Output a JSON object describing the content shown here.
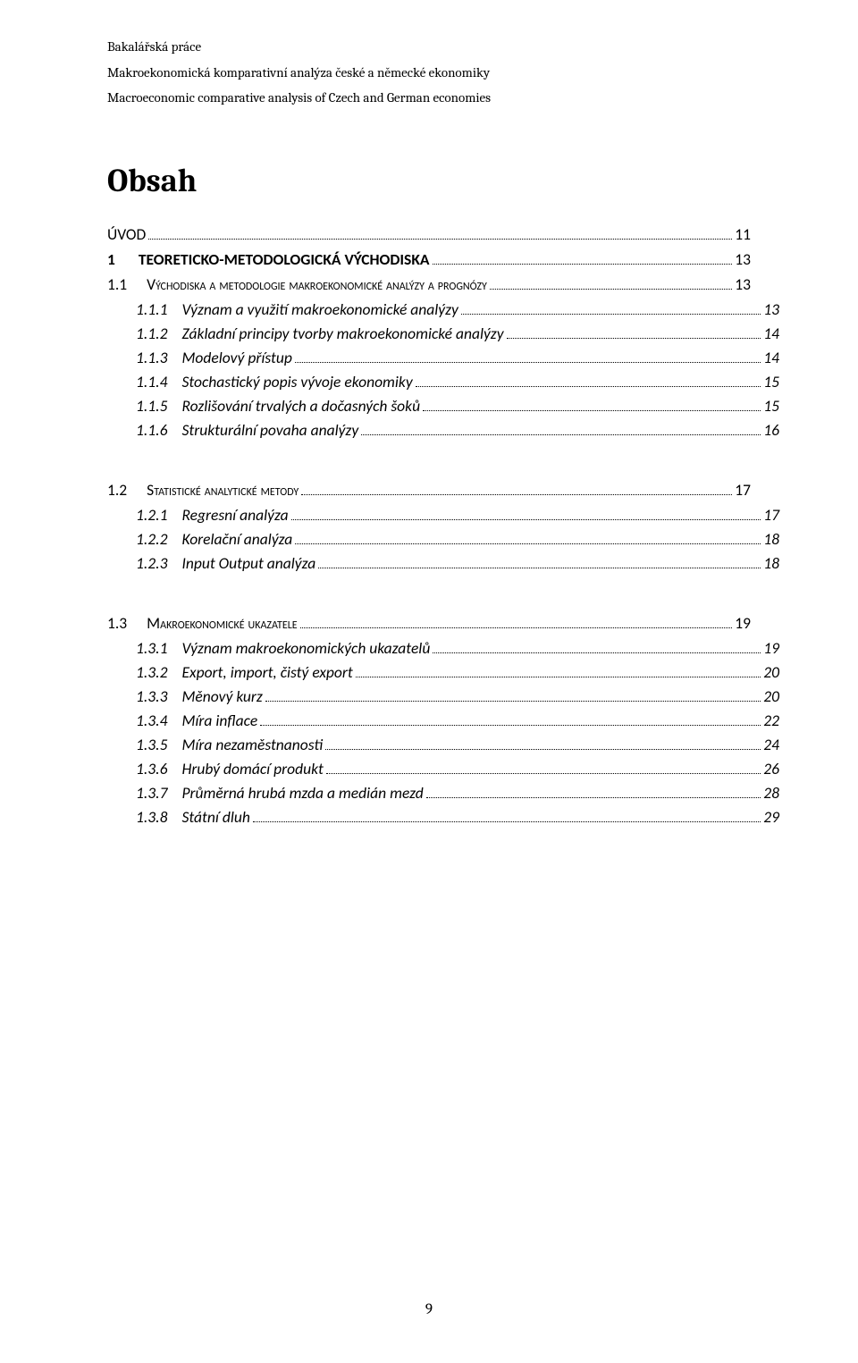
{
  "header": {
    "line1": "Bakalářská práce",
    "line2": "Makroekonomická komparativní analýza české a německé ekonomiky",
    "line3": "Macroeconomic comparative analysis of Czech and German economies"
  },
  "title": "Obsah",
  "toc": {
    "uvod": {
      "label": "ÚVOD",
      "page": "11"
    },
    "ch1": {
      "num": "1",
      "label": "TEORETICKO-METODOLOGICKÁ VÝCHODISKA",
      "page": "13"
    },
    "s11": {
      "num": "1.1",
      "label": "Východiska a metodologie makroekonomické analýzy a prognózy",
      "page": "13"
    },
    "s111": {
      "num": "1.1.1",
      "label": "Význam a využití makroekonomické analýzy",
      "page": "13"
    },
    "s112": {
      "num": "1.1.2",
      "label": "Základní principy tvorby makroekonomické analýzy",
      "page": "14"
    },
    "s113": {
      "num": "1.1.3",
      "label": "Modelový přístup",
      "page": "14"
    },
    "s114": {
      "num": "1.1.4",
      "label": "Stochastický popis vývoje ekonomiky",
      "page": "15"
    },
    "s115": {
      "num": "1.1.5",
      "label": "Rozlišování trvalých a dočasných šoků",
      "page": "15"
    },
    "s116": {
      "num": "1.1.6",
      "label": "Strukturální povaha analýzy",
      "page": "16"
    },
    "s12": {
      "num": "1.2",
      "label": "Statistické analytické metody",
      "page": "17"
    },
    "s121": {
      "num": "1.2.1",
      "label": "Regresní analýza",
      "page": "17"
    },
    "s122": {
      "num": "1.2.2",
      "label": "Korelační analýza",
      "page": "18"
    },
    "s123": {
      "num": "1.2.3",
      "label": "Input Output analýza",
      "page": "18"
    },
    "s13": {
      "num": "1.3",
      "label": "Makroekonomické ukazatele",
      "page": "19"
    },
    "s131": {
      "num": "1.3.1",
      "label": "Význam makroekonomických ukazatelů",
      "page": "19"
    },
    "s132": {
      "num": "1.3.2",
      "label": "Export, import, čistý export",
      "page": "20"
    },
    "s133": {
      "num": "1.3.3",
      "label": "Měnový kurz",
      "page": "20"
    },
    "s134": {
      "num": "1.3.4",
      "label": "Míra inflace",
      "page": "22"
    },
    "s135": {
      "num": "1.3.5",
      "label": "Míra nezaměstnanosti",
      "page": "24"
    },
    "s136": {
      "num": "1.3.6",
      "label": "Hrubý domácí produkt",
      "page": "26"
    },
    "s137": {
      "num": "1.3.7",
      "label": "Průměrná hrubá mzda a medián mezd",
      "page": "28"
    },
    "s138": {
      "num": "1.3.8",
      "label": "Státní dluh",
      "page": "29"
    }
  },
  "page_number": "9"
}
